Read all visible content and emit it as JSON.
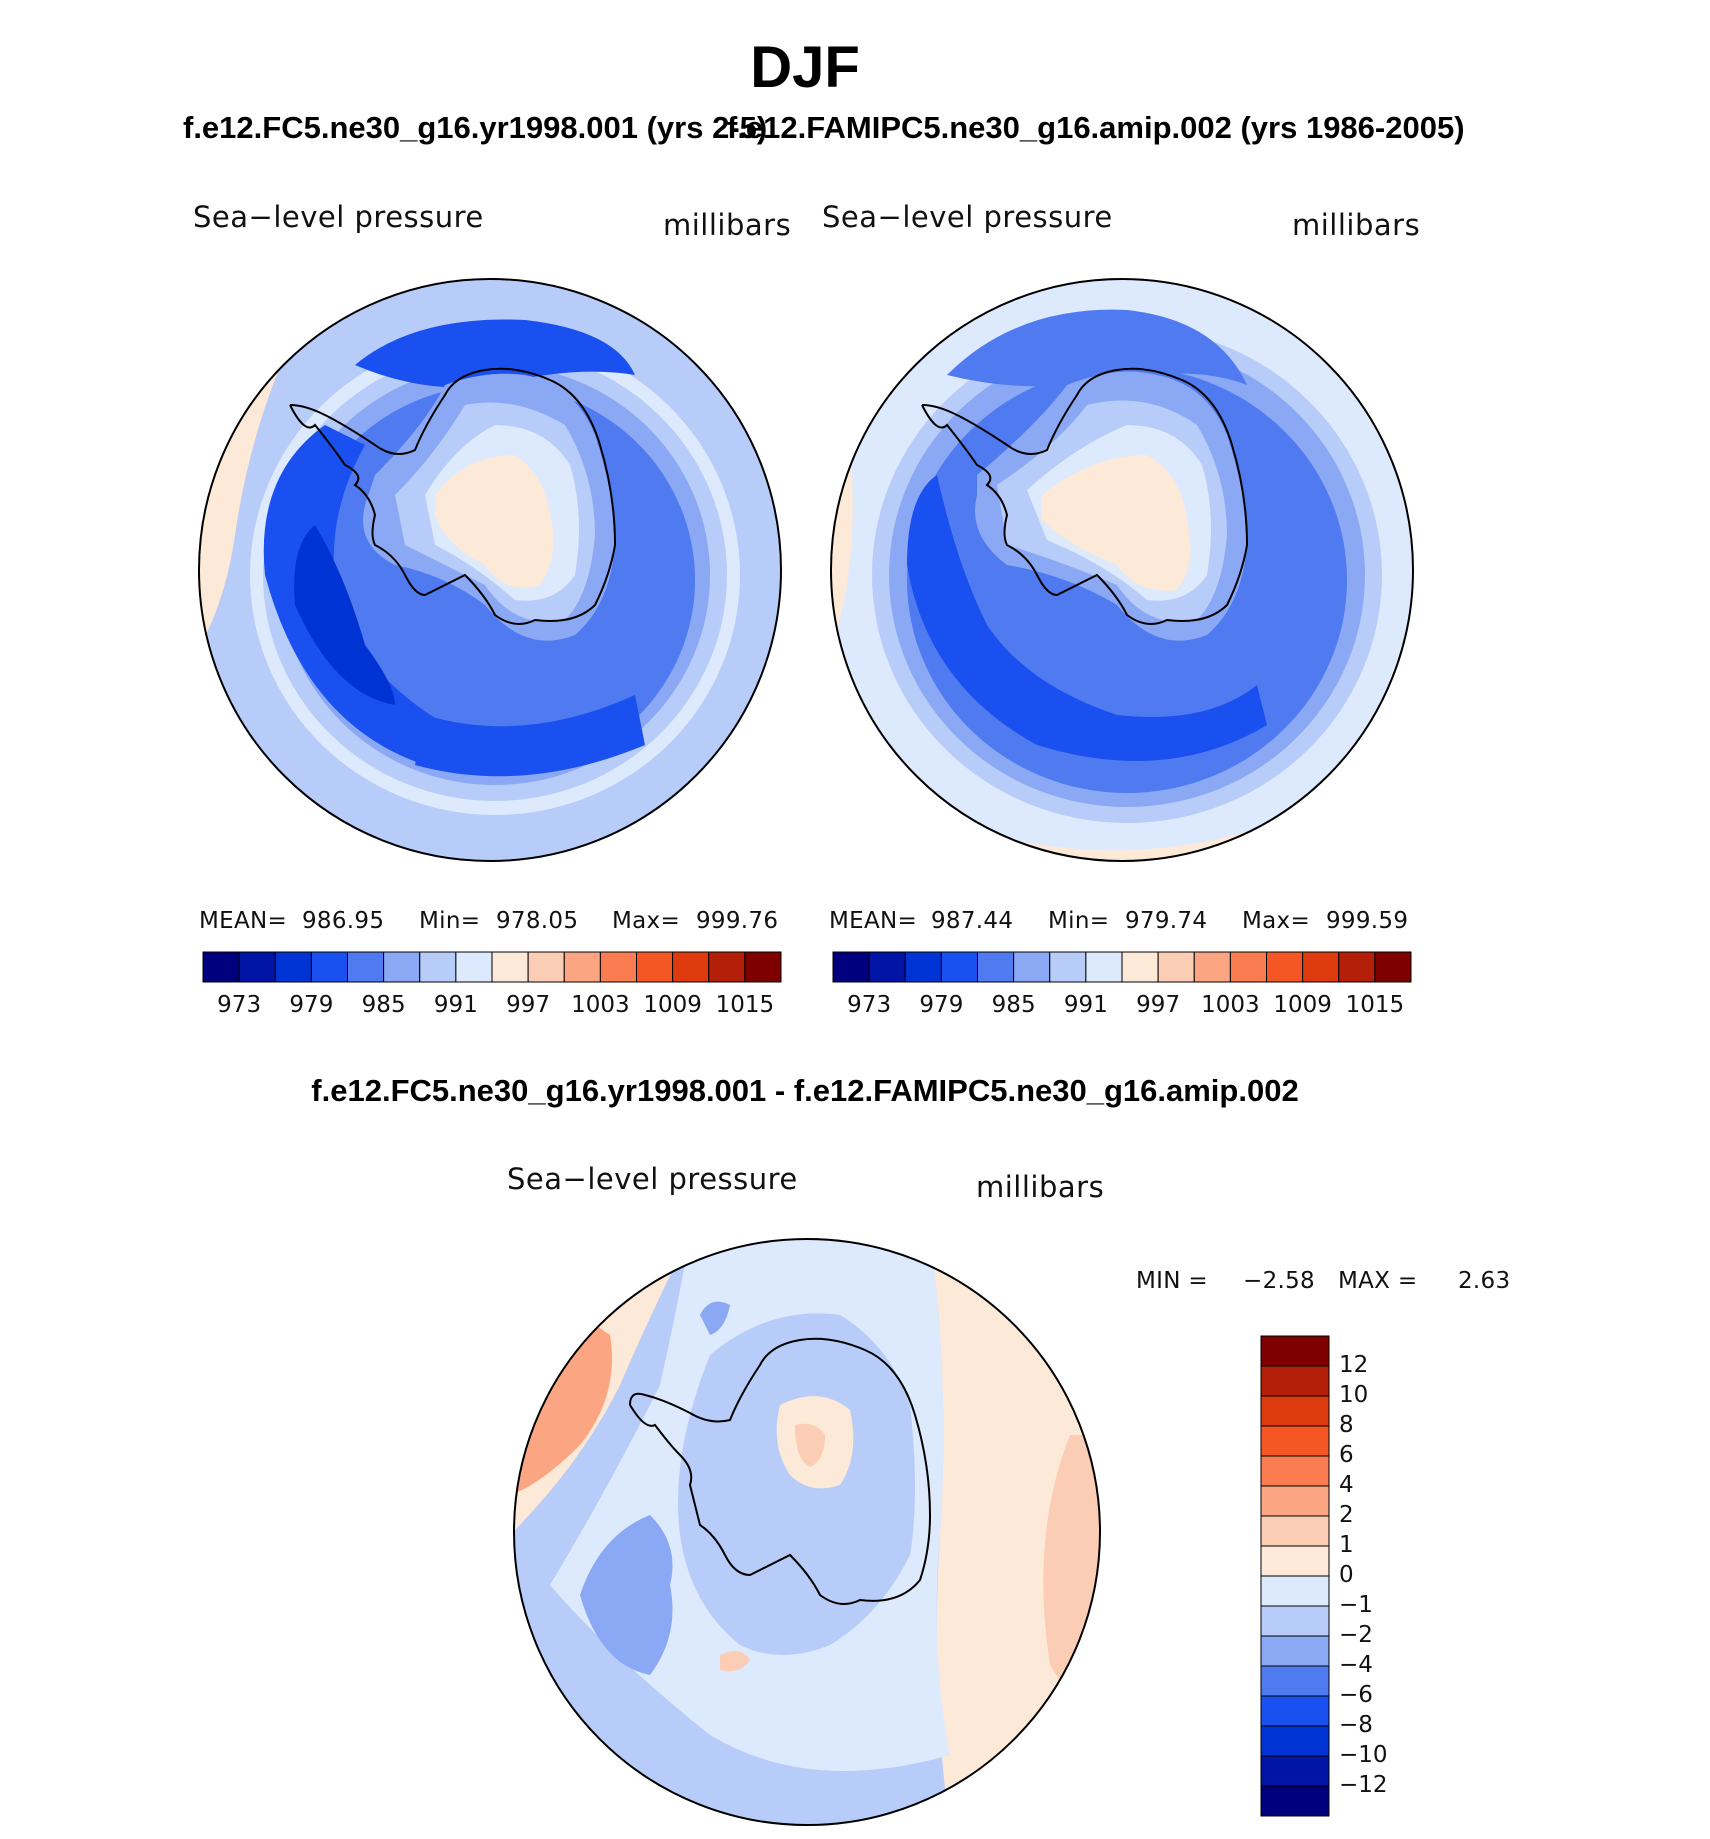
{
  "page_title": "DJF",
  "panels": [
    {
      "case_title": "f.e12.FC5.ne30_g16.yr1998.001 (yrs 2-5)",
      "variable": "Sea−level pressure",
      "units": "millibars",
      "mean_label": "MEAN=",
      "mean_value": "986.95",
      "min_label": "Min=",
      "min_value": "978.05",
      "max_label": "Max=",
      "max_value": "999.76"
    },
    {
      "case_title": "f.e12.FAMIPC5.ne30_g16.amip.002 (yrs 1986-2005)",
      "variable": "Sea−level pressure",
      "units": "millibars",
      "mean_label": "MEAN=",
      "mean_value": "987.44",
      "min_label": "Min=",
      "min_value": "979.74",
      "max_label": "Max=",
      "max_value": "999.59"
    }
  ],
  "diff_panel": {
    "title": "f.e12.FC5.ne30_g16.yr1998.001 - f.e12.FAMIPC5.ne30_g16.amip.002",
    "variable": "Sea−level pressure",
    "units": "millibars",
    "min_label": "MIN =",
    "min_value": "−2.58",
    "max_label": "MAX =",
    "max_value": "2.63"
  },
  "colors": {
    "abs_scale": [
      "#00007f",
      "#0015a6",
      "#0033d3",
      "#1a4ff0",
      "#4f7af0",
      "#8aa8f4",
      "#b7ccf8",
      "#dde9fc",
      "#fde9d8",
      "#fccdb5",
      "#fba582",
      "#f97d50",
      "#f45724",
      "#dd3b0e",
      "#b31f09",
      "#7f0000"
    ],
    "diff_scale": [
      "#00007f",
      "#0015a6",
      "#0033d3",
      "#1a4ff0",
      "#4f7af0",
      "#8aa8f4",
      "#b7ccf8",
      "#dde9fc",
      "#fde9d8",
      "#fccdb5",
      "#fba582",
      "#f97d50",
      "#f45724",
      "#dd3b0e",
      "#b31f09",
      "#7f0000"
    ]
  },
  "chart_data": [
    {
      "type": "heatmap",
      "projection": "south-polar stereographic",
      "title": "f.e12.FC5.ne30_g16.yr1998.001 (yrs 2-5)",
      "field": "Sea−level pressure",
      "units": "millibars",
      "stats": {
        "mean": 986.95,
        "min": 978.05,
        "max": 999.76
      },
      "colorbar_ticks": [
        "973",
        "979",
        "985",
        "991",
        "997",
        "1003",
        "1009",
        "1015"
      ],
      "contour_levels": [
        970,
        973,
        976,
        979,
        982,
        985,
        988,
        991,
        994,
        997,
        1000,
        1003,
        1006,
        1009,
        1012,
        1015,
        1018
      ]
    },
    {
      "type": "heatmap",
      "projection": "south-polar stereographic",
      "title": "f.e12.FAMIPC5.ne30_g16.amip.002 (yrs 1986-2005)",
      "field": "Sea−level pressure",
      "units": "millibars",
      "stats": {
        "mean": 987.44,
        "min": 979.74,
        "max": 999.59
      },
      "colorbar_ticks": [
        "973",
        "979",
        "985",
        "991",
        "997",
        "1003",
        "1009",
        "1015"
      ],
      "contour_levels": [
        970,
        973,
        976,
        979,
        982,
        985,
        988,
        991,
        994,
        997,
        1000,
        1003,
        1006,
        1009,
        1012,
        1015,
        1018
      ]
    },
    {
      "type": "heatmap",
      "projection": "south-polar stereographic",
      "title": "f.e12.FC5.ne30_g16.yr1998.001 - f.e12.FAMIPC5.ne30_g16.amip.002",
      "field": "Sea−level pressure",
      "units": "millibars",
      "stats": {
        "min": -2.58,
        "max": 2.63
      },
      "colorbar_ticks": [
        "12",
        "10",
        "8",
        "6",
        "4",
        "2",
        "1",
        "0",
        "−1",
        "−2",
        "−4",
        "−6",
        "−8",
        "−10",
        "−12"
      ],
      "legend": "right"
    }
  ]
}
